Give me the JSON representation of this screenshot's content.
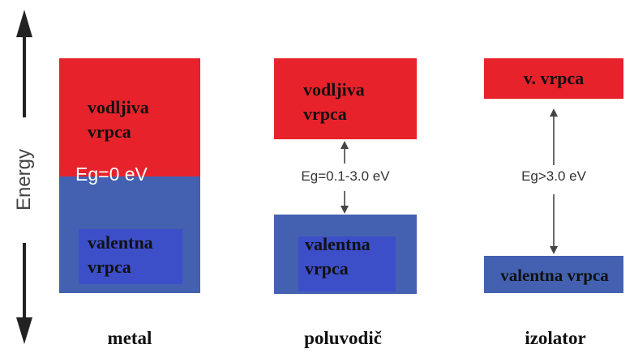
{
  "axis": {
    "label": "Energy"
  },
  "materials": [
    {
      "name": "metal",
      "conduction": "vodljiva\nvrpca",
      "gap": "Eg=0 eV",
      "valence": "valentna\nvrpca"
    },
    {
      "name": "poluvodič",
      "conduction": "vodljiva\nvrpca",
      "gap": "Eg=0.1-3.0 eV",
      "valence": "valentna\nvrpca"
    },
    {
      "name": "izolator",
      "conduction": "v. vrpca",
      "gap": "Eg>3.0 eV",
      "valence": "valentna vrpca"
    }
  ],
  "colors": {
    "conduction_band": "#e8222b",
    "valence_band": "#4361b0"
  }
}
